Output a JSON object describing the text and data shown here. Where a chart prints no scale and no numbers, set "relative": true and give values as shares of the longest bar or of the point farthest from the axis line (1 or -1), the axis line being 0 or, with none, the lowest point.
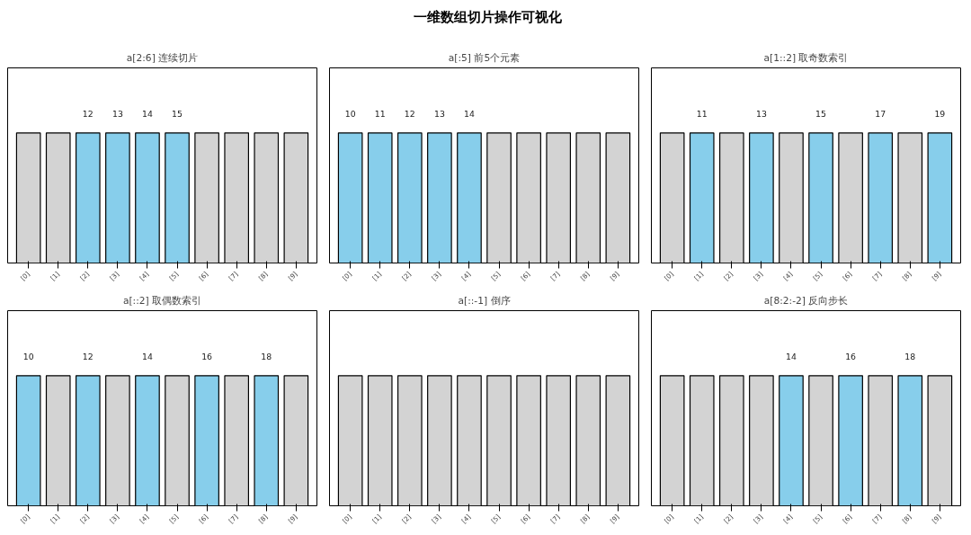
{
  "chart_data": [
    {
      "type": "bar",
      "title": "a[2:6] 连续切片",
      "relative": true,
      "categories": [
        "[0]",
        "[1]",
        "[2]",
        "[3]",
        "[4]",
        "[5]",
        "[6]",
        "[7]",
        "[8]",
        "[9]"
      ],
      "values": [
        1,
        1,
        1,
        1,
        1,
        1,
        1,
        1,
        1,
        1
      ],
      "colors": [
        "#d3d3d3",
        "#d3d3d3",
        "#87ceeb",
        "#87ceeb",
        "#87ceeb",
        "#87ceeb",
        "#d3d3d3",
        "#d3d3d3",
        "#d3d3d3",
        "#d3d3d3"
      ],
      "annotations": [
        "一维数组切片操作可视化",
        {
          "text": "12",
          "x": "[2]",
          "y": 1
        },
        {
          "text": "13",
          "x": "[3]",
          "y": 1
        },
        {
          "text": "14",
          "x": "[4]",
          "y": 1
        },
        {
          "text": "15",
          "x": "[5]",
          "y": 1
        }
      ]
    },
    {
      "type": "bar",
      "title": "a[:5] 前5个元素",
      "relative": true,
      "categories": [
        "[0]",
        "[1]",
        "[2]",
        "[3]",
        "[4]",
        "[5]",
        "[6]",
        "[7]",
        "[8]",
        "[9]"
      ],
      "values": [
        1,
        1,
        1,
        1,
        1,
        1,
        1,
        1,
        1,
        1
      ],
      "colors": [
        "#87ceeb",
        "#87ceeb",
        "#87ceeb",
        "#87ceeb",
        "#87ceeb",
        "#d3d3d3",
        "#d3d3d3",
        "#d3d3d3",
        "#d3d3d3",
        "#d3d3d3"
      ],
      "annotations": [
        {
          "text": "10",
          "x": "[0]",
          "y": 1
        },
        {
          "text": "11",
          "x": "[1]",
          "y": 1
        },
        {
          "text": "12",
          "x": "[2]",
          "y": 1
        },
        {
          "text": "13",
          "x": "[3]",
          "y": 1
        },
        {
          "text": "14",
          "x": "[4]",
          "y": 1
        }
      ]
    },
    {
      "type": "bar",
      "title": "a[1::2] 取奇数索引",
      "relative": true,
      "categories": [
        "[0]",
        "[1]",
        "[2]",
        "[3]",
        "[4]",
        "[5]",
        "[6]",
        "[7]",
        "[8]",
        "[9]"
      ],
      "values": [
        1,
        1,
        1,
        1,
        1,
        1,
        1,
        1,
        1,
        1
      ],
      "colors": [
        "#d3d3d3",
        "#87ceeb",
        "#d3d3d3",
        "#87ceeb",
        "#d3d3d3",
        "#87ceeb",
        "#d3d3d3",
        "#87ceeb",
        "#d3d3d3",
        "#87ceeb"
      ],
      "annotations": [
        {
          "text": "11",
          "x": "[1]",
          "y": 1
        },
        {
          "text": "13",
          "x": "[3]",
          "y": 1
        },
        {
          "text": "15",
          "x": "[5]",
          "y": 1
        },
        {
          "text": "17",
          "x": "[7]",
          "y": 1
        },
        {
          "text": "19",
          "x": "[9]",
          "y": 1
        }
      ]
    },
    {
      "type": "bar",
      "title": "a[::2] 取偶数索引",
      "relative": true,
      "categories": [
        "[0]",
        "[1]",
        "[2]",
        "[3]",
        "[4]",
        "[5]",
        "[6]",
        "[7]",
        "[8]",
        "[9]"
      ],
      "values": [
        1,
        1,
        1,
        1,
        1,
        1,
        1,
        1,
        1,
        1
      ],
      "colors": [
        "#87ceeb",
        "#d3d3d3",
        "#87ceeb",
        "#d3d3d3",
        "#87ceeb",
        "#d3d3d3",
        "#87ceeb",
        "#d3d3d3",
        "#87ceeb",
        "#d3d3d3"
      ],
      "annotations": [
        {
          "text": "10",
          "x": "[0]",
          "y": 1
        },
        {
          "text": "12",
          "x": "[2]",
          "y": 1
        },
        {
          "text": "14",
          "x": "[4]",
          "y": 1
        },
        {
          "text": "16",
          "x": "[6]",
          "y": 1
        },
        {
          "text": "18",
          "x": "[8]",
          "y": 1
        }
      ]
    },
    {
      "type": "bar",
      "title": "a[::-1] 倒序",
      "relative": true,
      "categories": [
        "[0]",
        "[1]",
        "[2]",
        "[3]",
        "[4]",
        "[5]",
        "[6]",
        "[7]",
        "[8]",
        "[9]"
      ],
      "values": [
        1,
        1,
        1,
        1,
        1,
        1,
        1,
        1,
        1,
        1
      ],
      "colors": [
        "#d3d3d3",
        "#d3d3d3",
        "#d3d3d3",
        "#d3d3d3",
        "#d3d3d3",
        "#d3d3d3",
        "#d3d3d3",
        "#d3d3d3",
        "#d3d3d3",
        "#d3d3d3"
      ]
    },
    {
      "type": "bar",
      "title": "a[8:2:-2] 反向步长",
      "relative": true,
      "categories": [
        "[0]",
        "[1]",
        "[2]",
        "[3]",
        "[4]",
        "[5]",
        "[6]",
        "[7]",
        "[8]",
        "[9]"
      ],
      "values": [
        1,
        1,
        1,
        1,
        1,
        1,
        1,
        1,
        1,
        1
      ],
      "colors": [
        "#d3d3d3",
        "#d3d3d3",
        "#d3d3d3",
        "#d3d3d3",
        "#87ceeb",
        "#d3d3d3",
        "#87ceeb",
        "#d3d3d3",
        "#87ceeb",
        "#d3d3d3"
      ],
      "annotations": [
        {
          "text": "14",
          "x": "[4]",
          "y": 1
        },
        {
          "text": "16",
          "x": "[6]",
          "y": 1
        },
        {
          "text": "18",
          "x": "[8]",
          "y": 1
        }
      ]
    }
  ]
}
